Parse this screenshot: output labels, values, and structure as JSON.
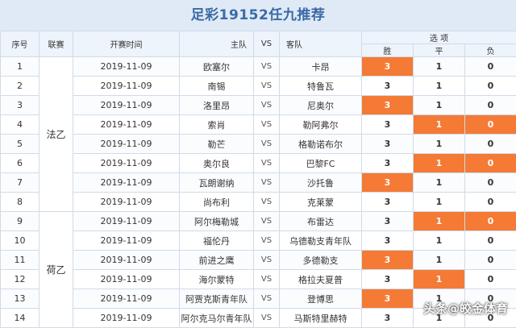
{
  "title": "足彩19152任九推荐",
  "headers": {
    "seq": "序号",
    "league": "联赛",
    "time": "开赛时间",
    "home": "主队",
    "vs": "VS",
    "away": "客队",
    "options": "选 项",
    "win": "胜",
    "draw": "平",
    "loss": "负"
  },
  "colors": {
    "selected": "#f47a35",
    "header_bg": "#eef4fb",
    "title_color": "#3b6aa6"
  },
  "leagues": [
    {
      "name": "法乙",
      "rows": 8
    },
    {
      "name": "荷乙",
      "rows": 6
    }
  ],
  "rows": [
    {
      "seq": "1",
      "time": "2019-11-09",
      "home": "欧塞尔",
      "away": "卡昂",
      "win": "3",
      "draw": "1",
      "loss": "0",
      "sel": [
        "win"
      ]
    },
    {
      "seq": "2",
      "time": "2019-11-09",
      "home": "南锡",
      "away": "特鲁瓦",
      "win": "3",
      "draw": "1",
      "loss": "0",
      "sel": []
    },
    {
      "seq": "3",
      "time": "2019-11-09",
      "home": "洛里昂",
      "away": "尼奥尔",
      "win": "3",
      "draw": "1",
      "loss": "0",
      "sel": [
        "win"
      ]
    },
    {
      "seq": "4",
      "time": "2019-11-09",
      "home": "索肖",
      "away": "勒阿弗尔",
      "win": "3",
      "draw": "1",
      "loss": "0",
      "sel": [
        "draw",
        "loss"
      ]
    },
    {
      "seq": "5",
      "time": "2019-11-09",
      "home": "勒芒",
      "away": "格勒诺布尔",
      "win": "3",
      "draw": "1",
      "loss": "0",
      "sel": []
    },
    {
      "seq": "6",
      "time": "2019-11-09",
      "home": "奥尔良",
      "away": "巴黎FC",
      "win": "3",
      "draw": "1",
      "loss": "0",
      "sel": [
        "draw",
        "loss"
      ]
    },
    {
      "seq": "7",
      "time": "2019-11-09",
      "home": "瓦朗谢纳",
      "away": "沙托鲁",
      "win": "3",
      "draw": "1",
      "loss": "0",
      "sel": [
        "win"
      ]
    },
    {
      "seq": "8",
      "time": "2019-11-09",
      "home": "尚布利",
      "away": "克莱蒙",
      "win": "3",
      "draw": "1",
      "loss": "0",
      "sel": []
    },
    {
      "seq": "9",
      "time": "2019-11-09",
      "home": "阿尔梅勒城",
      "away": "布雷达",
      "win": "3",
      "draw": "1",
      "loss": "0",
      "sel": [
        "draw",
        "loss"
      ]
    },
    {
      "seq": "10",
      "time": "2019-11-09",
      "home": "福伦丹",
      "away": "乌德勒支青年队",
      "win": "3",
      "draw": "1",
      "loss": "0",
      "sel": []
    },
    {
      "seq": "11",
      "time": "2019-11-09",
      "home": "前进之鹰",
      "away": "多德勒支",
      "win": "3",
      "draw": "1",
      "loss": "0",
      "sel": [
        "win"
      ]
    },
    {
      "seq": "12",
      "time": "2019-11-09",
      "home": "海尔蒙特",
      "away": "格拉夫夏普",
      "win": "3",
      "draw": "1",
      "loss": "0",
      "sel": [
        "draw"
      ]
    },
    {
      "seq": "13",
      "time": "2019-11-09",
      "home": "阿贾克斯青年队",
      "away": "登博思",
      "win": "3",
      "draw": "1",
      "loss": "0",
      "sel": [
        "win"
      ]
    },
    {
      "seq": "14",
      "time": "2019-11-09",
      "home": "阿尔克马尔青年队",
      "away": "马斯特里赫特",
      "win": "3",
      "draw": "1",
      "loss": "0",
      "sel": []
    }
  ],
  "watermark": "头条@皎金体育"
}
